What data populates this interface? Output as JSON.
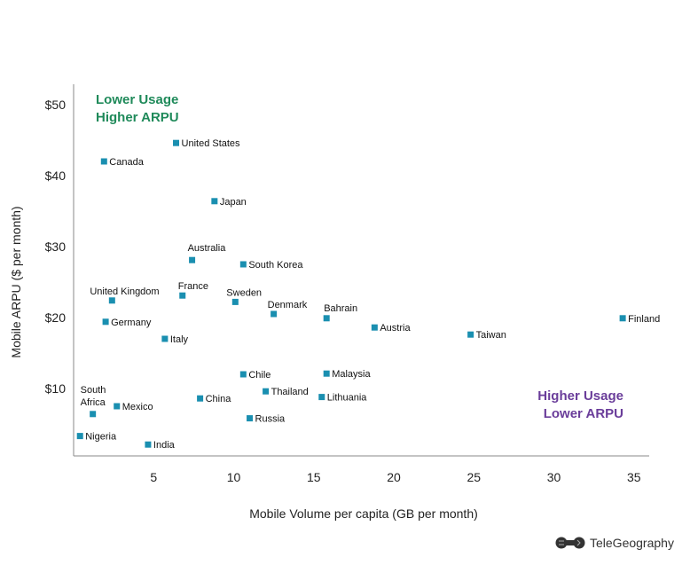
{
  "chart_data": {
    "type": "scatter",
    "title": "",
    "xlabel": "Mobile Volume per capita (GB per month)",
    "ylabel": "Mobile ARPU ($ per month)",
    "xlim": [
      0,
      36
    ],
    "ylim": [
      0,
      50
    ],
    "x_ticks": [
      5,
      10,
      15,
      20,
      25,
      30,
      35
    ],
    "y_ticks": [
      10,
      20,
      30,
      40,
      50
    ],
    "y_tick_labels": [
      "$10",
      "$20",
      "$30",
      "$40",
      "$50"
    ],
    "grid": false,
    "marker_color": "#1a8fb0",
    "annotations": [
      {
        "lines": [
          "Lower Usage",
          "Higher ARPU"
        ],
        "color": "#1f8a5a"
      },
      {
        "lines": [
          "Higher Usage",
          "Lower ARPU"
        ],
        "color": "#6a3d9a"
      }
    ],
    "points": [
      {
        "label": "United States",
        "x": 6.4,
        "y": 44.6
      },
      {
        "label": "Canada",
        "x": 1.9,
        "y": 42.0
      },
      {
        "label": "Japan",
        "x": 8.8,
        "y": 36.4
      },
      {
        "label": "Australia",
        "x": 7.4,
        "y": 28.1
      },
      {
        "label": "South Korea",
        "x": 10.6,
        "y": 27.5
      },
      {
        "label": "France",
        "x": 6.8,
        "y": 23.1
      },
      {
        "label": "United Kingdom",
        "x": 2.4,
        "y": 22.4
      },
      {
        "label": "Sweden",
        "x": 10.1,
        "y": 22.2
      },
      {
        "label": "Denmark",
        "x": 12.5,
        "y": 20.5
      },
      {
        "label": "Bahrain",
        "x": 15.8,
        "y": 19.9
      },
      {
        "label": "Germany",
        "x": 2.0,
        "y": 19.4
      },
      {
        "label": "Finland",
        "x": 34.3,
        "y": 19.9
      },
      {
        "label": "Austria",
        "x": 18.8,
        "y": 18.6
      },
      {
        "label": "Taiwan",
        "x": 24.8,
        "y": 17.6
      },
      {
        "label": "Italy",
        "x": 5.7,
        "y": 17.0
      },
      {
        "label": "Chile",
        "x": 10.6,
        "y": 12.0
      },
      {
        "label": "Malaysia",
        "x": 15.8,
        "y": 12.1
      },
      {
        "label": "Thailand",
        "x": 12.0,
        "y": 9.6
      },
      {
        "label": "Lithuania",
        "x": 15.5,
        "y": 8.8
      },
      {
        "label": "China",
        "x": 7.9,
        "y": 8.6
      },
      {
        "label": "Mexico",
        "x": 2.7,
        "y": 7.5
      },
      {
        "label": "South Africa",
        "x": 1.2,
        "y": 6.4
      },
      {
        "label": "Russia",
        "x": 11.0,
        "y": 5.8
      },
      {
        "label": "Nigeria",
        "x": 0.4,
        "y": 3.3
      },
      {
        "label": "India",
        "x": 4.65,
        "y": 2.1
      }
    ]
  },
  "logo": {
    "text": "TeleGeography"
  }
}
